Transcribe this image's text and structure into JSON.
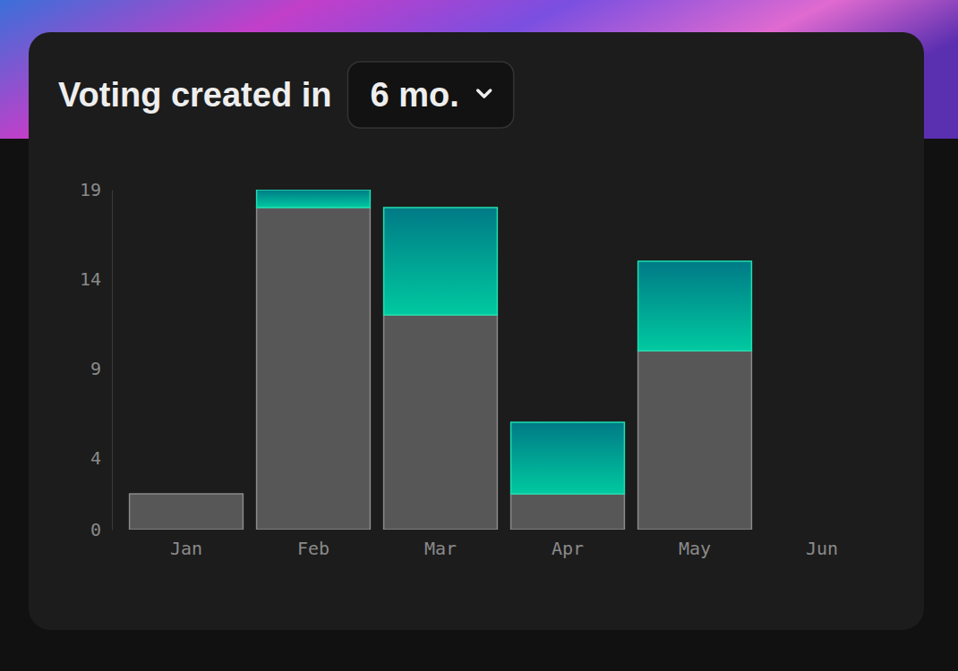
{
  "chart_data": {
    "type": "bar",
    "title": "Voting created in",
    "subtitle": "6 mo.",
    "categories": [
      "Jan",
      "Feb",
      "Mar",
      "Apr",
      "May",
      "Jun"
    ],
    "series": [
      {
        "color": "#575757",
        "values": [
          2,
          18,
          12,
          2,
          10,
          0
        ]
      },
      {
        "color": "#00c9a0",
        "values": [
          0,
          1,
          6,
          4,
          5,
          0
        ]
      }
    ],
    "stacked": true,
    "grid": false,
    "ylim": [
      0,
      19
    ],
    "yticks": [
      0,
      4,
      9,
      14,
      19
    ]
  }
}
